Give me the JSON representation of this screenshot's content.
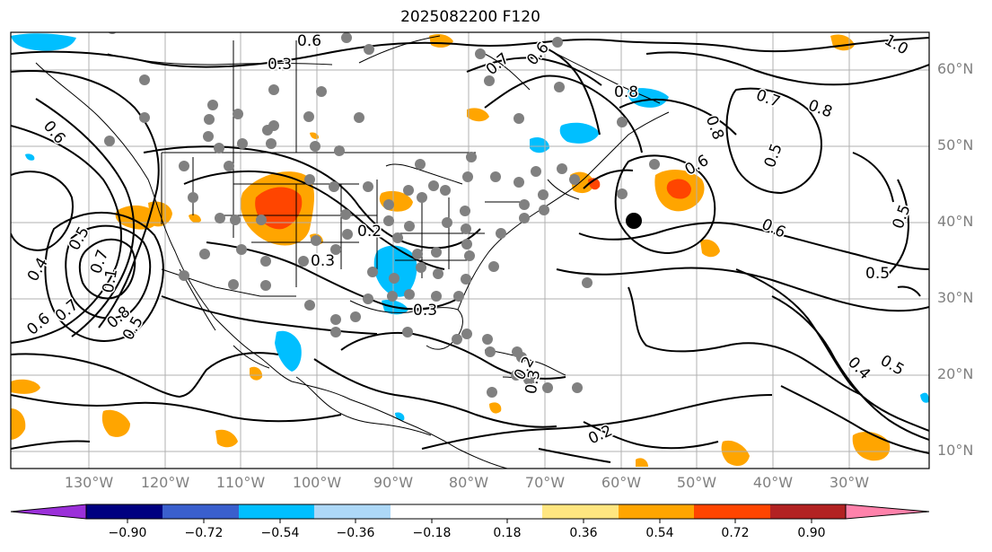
{
  "title": "2025082200 F120",
  "lat_labels": [
    "60°N",
    "50°N",
    "40°N",
    "30°N",
    "20°N",
    "10°N"
  ],
  "lon_labels": [
    "130°W",
    "120°W",
    "110°W",
    "100°W",
    "90°W",
    "80°W",
    "70°W",
    "60°W",
    "50°W",
    "40°W",
    "30°W"
  ],
  "contour_labels": [
    "0.6",
    "0.3",
    "0.7",
    "0.6",
    "1.0",
    "0.8",
    "0.7",
    "0.8",
    "0.8",
    "0.5",
    "0.6",
    "0.5",
    "0.6",
    "0.2",
    "0.3",
    "0.3",
    "0.5",
    "0.4",
    "0.5",
    "0.7",
    "0.8",
    "0.6",
    "0.7",
    "0.5",
    "0.1",
    "0.2",
    "0.2",
    "0.4",
    "0.5",
    "0.3",
    "0.6"
  ],
  "colorbar": {
    "ticks": [
      "−0.90",
      "−0.72",
      "−0.54",
      "−0.36",
      "−0.18",
      "0.18",
      "0.36",
      "0.54",
      "0.72",
      "0.90"
    ],
    "colors": [
      "#9b30d9",
      "#000080",
      "#3a5fcd",
      "#00bfff",
      "#add8f7",
      "#ffffff",
      "#ffe680",
      "#ffa500",
      "#ff4500",
      "#b22222",
      "#ff82ab"
    ]
  },
  "colors": {
    "pos_light": "#ffa500",
    "pos_mid": "#ff4500",
    "neg_light": "#00bfff",
    "station": "#808080",
    "grid": "#b0b0b0",
    "label": "#808080"
  }
}
